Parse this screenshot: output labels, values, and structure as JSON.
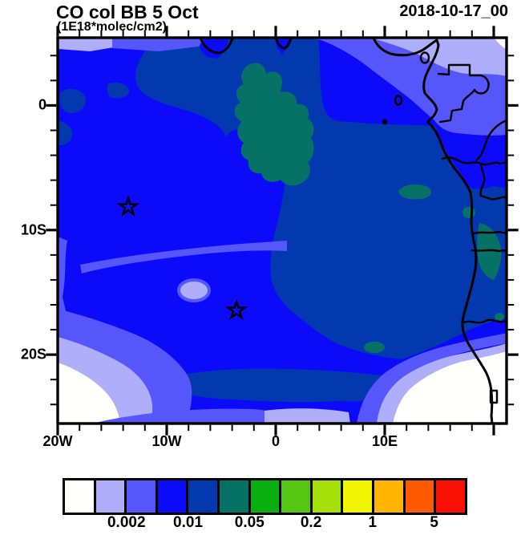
{
  "header": {
    "title": "CO col BB 5 Oct",
    "subtitle": "(1E18*molec/cm2)",
    "date": "2018-10-17_00"
  },
  "axes": {
    "x_tick_labels": [
      "20W",
      "10W",
      "0",
      "10E"
    ],
    "y_tick_labels": [
      "0",
      "10S",
      "20S"
    ]
  },
  "colorbar": {
    "colors": [
      "#FFFFFB",
      "#AEAEFB",
      "#5557FA",
      "#0B0BFA",
      "#0339AE",
      "#067165",
      "#09AE10",
      "#55C713",
      "#A6E00A",
      "#F2F501",
      "#FFB502",
      "#FF5A01",
      "#F90F04"
    ],
    "labels": [
      "0.002",
      "0.01",
      "0.05",
      "0.2",
      "1",
      "5"
    ]
  },
  "map_colors": {
    "base_blue": "#0B0BFA",
    "dark_navy": "#0339AE",
    "teal": "#067165",
    "violet": "#5557FA",
    "lavender": "#AEAEFB",
    "white": "#FFFFFB",
    "line": "#000000"
  },
  "chart_data": {
    "type": "filled_contour_map",
    "title": "CO col BB 5 Oct",
    "units": "1E18*molec/cm2",
    "datetime_label": "2018-10-17_00",
    "x_axis": {
      "tick_labels": [
        "20W",
        "10W",
        "0",
        "10E"
      ],
      "approx_range_deg_lon": [
        -20,
        21
      ]
    },
    "y_axis": {
      "tick_labels": [
        "0",
        "10S",
        "20S"
      ],
      "approx_range_deg_lat": [
        5.5,
        -25.5
      ]
    },
    "contour_levels": [
      0.001,
      0.002,
      0.005,
      0.01,
      0.02,
      0.05,
      0.1,
      0.2,
      0.5,
      1,
      2,
      5
    ],
    "labeled_levels": [
      "0.002",
      "0.01",
      "0.05",
      "0.2",
      "1",
      "5"
    ],
    "palette": [
      "#FFFFFB",
      "#AEAEFB",
      "#5557FA",
      "#0B0BFA",
      "#0339AE",
      "#067165",
      "#09AE10",
      "#55C713",
      "#A6E00A",
      "#F2F501",
      "#FFB502",
      "#FF5A01",
      "#F90F04"
    ],
    "field_summary": [
      {
        "range": "<0.001",
        "color": "#FFFFFB",
        "where": "southwest corner and southeast corner over/along Namibian coast"
      },
      {
        "range": "0.001-0.005",
        "color": "#AEAEFB / #5557FA",
        "where": "northeast corner (Gulf of Guinea land), thin top-left band, south and southwest margins"
      },
      {
        "range": "0.005-0.01",
        "color": "#0B0BFA",
        "where": "dominant over most of the South Atlantic domain"
      },
      {
        "range": "0.01-0.02",
        "color": "#0339AE",
        "where": "upper-central band and large central-eastern mass plus bottom-central band"
      },
      {
        "range": "0.02-0.05",
        "color": "#067165",
        "where": "blob near 7W-3E / 1N-11S and small patches along the Angolan coast"
      }
    ],
    "markers": [
      {
        "symbol": "open-star",
        "approx_lon": -14.4,
        "approx_lat": -8,
        "note": "Ascension Island area"
      },
      {
        "symbol": "open-star",
        "approx_lon": -5.7,
        "approx_lat": -16,
        "note": "St Helena area"
      }
    ],
    "overlays": [
      "African coastline",
      "country borders",
      "small islands (Bioko, Principe, Sao Tome)"
    ]
  }
}
